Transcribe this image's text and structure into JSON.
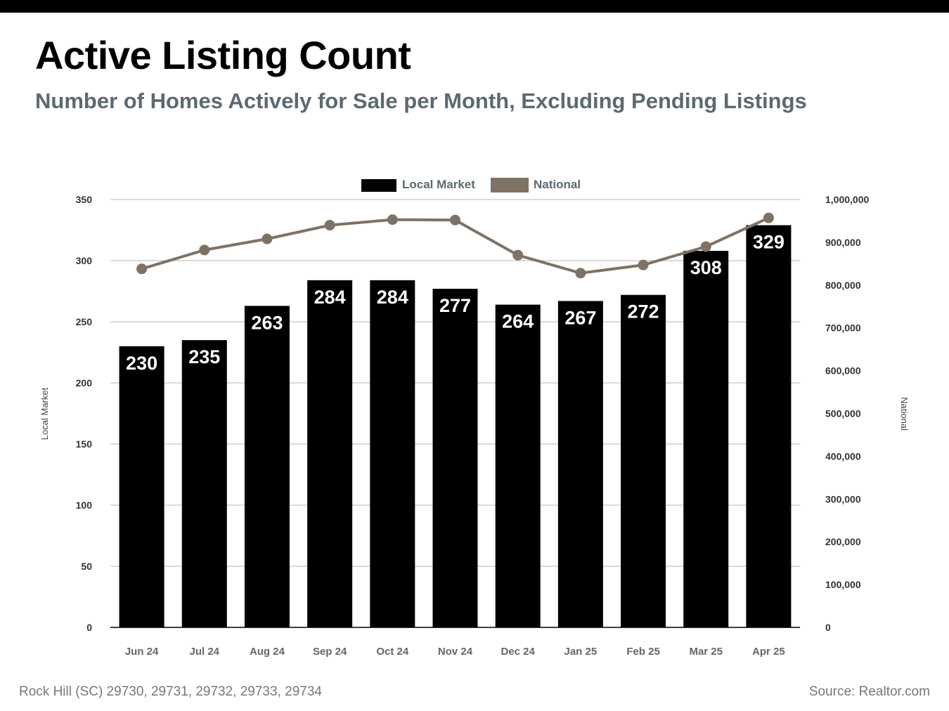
{
  "header": {
    "title": "Active Listing Count",
    "subtitle": "Number of Homes Actively for Sale per Month, Excluding Pending Listings"
  },
  "footer": {
    "location": "Rock Hill (SC) 29730, 29731, 29732, 29733, 29734",
    "source": "Source: Realtor.com"
  },
  "chart_data": {
    "type": "bar",
    "categories": [
      "Jun 24",
      "Jul 24",
      "Aug 24",
      "Sep 24",
      "Oct 24",
      "Nov 24",
      "Dec 24",
      "Jan 25",
      "Feb 25",
      "Mar 25",
      "Apr 25"
    ],
    "series": [
      {
        "name": "Local Market",
        "type": "bar",
        "axis": "left",
        "color": "#000000",
        "values": [
          230,
          235,
          263,
          284,
          284,
          277,
          264,
          267,
          272,
          308,
          329
        ]
      },
      {
        "name": "National",
        "type": "line",
        "axis": "right",
        "color": "#7f7264",
        "values": [
          838000,
          882000,
          908000,
          940000,
          953000,
          952000,
          870000,
          828000,
          847000,
          890000,
          957000
        ]
      }
    ],
    "y_left": {
      "label": "Local Market",
      "min": 0,
      "max": 350,
      "ticks": [
        0,
        50,
        100,
        150,
        200,
        250,
        300,
        350
      ]
    },
    "y_right": {
      "label": "National",
      "min": 0,
      "max": 1000000,
      "ticks": [
        0,
        100000,
        200000,
        300000,
        400000,
        500000,
        600000,
        700000,
        800000,
        900000,
        1000000
      ],
      "tick_labels": [
        "0",
        "100,000",
        "200,000",
        "300,000",
        "400,000",
        "500,000",
        "600,000",
        "700,000",
        "800,000",
        "900,000",
        "1,000,000"
      ]
    },
    "legend": "top-center",
    "grid": true,
    "data_labels": true
  }
}
